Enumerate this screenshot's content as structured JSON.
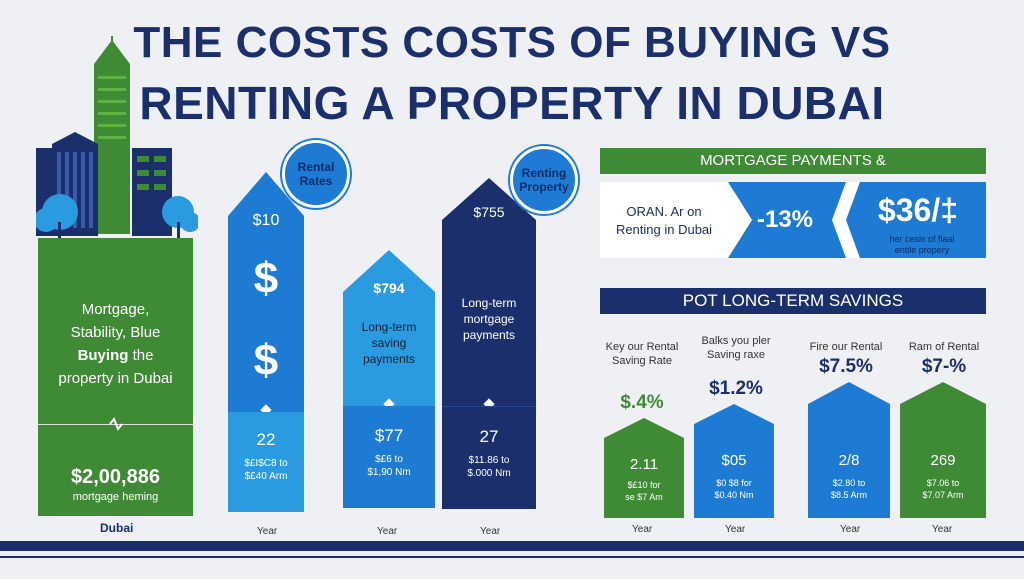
{
  "title": {
    "line1": "THE COSTS COSTS OF BUYING VS",
    "line2": "RENTING A PROPERTY IN DUBAI"
  },
  "left_column": {
    "text_line1": "Mortgage,",
    "text_line2": "Stability, Blue",
    "text_bold": "Buying",
    "text_line3_rest": " the",
    "text_line4": "property in Dubai",
    "big_value": "$2,00,886",
    "sub_value": "mortgage heming",
    "label": "Dubai"
  },
  "badges": [
    {
      "line1": "Rental",
      "line2": "Rates"
    },
    {
      "line1": "Renting",
      "line2": "Property"
    }
  ],
  "columns": [
    {
      "top_value": "$10",
      "mid_symbol1": "$",
      "mid_symbol2": "$",
      "big": "22",
      "sub1": "$£I$C8 to",
      "sub2": "$£40 Arm",
      "year": "Year"
    },
    {
      "top_value": "$794",
      "text1": "Long-term",
      "text2": "saving",
      "text3": "payments",
      "big": "$77",
      "sub1": "$£6 to",
      "sub2": "$1,90 Nm",
      "year": "Year"
    },
    {
      "top_value": "$755",
      "text1": "Long-term",
      "text2": "mortgage",
      "text3": "payments",
      "big": "27",
      "sub1": "$11.86 to",
      "sub2": "$.000 Nm",
      "year": "Year"
    }
  ],
  "mortgage_panel": {
    "banner": "MORTGAGE PAYMENTS &",
    "box_line1": "ORAN. Ar on",
    "box_line2": "Renting in Dubai",
    "pct": "-13%",
    "amount": "$36/‡",
    "note1": "her cesis of fiaal",
    "note2": "entile propery"
  },
  "savings_panel": {
    "banner": "POT LONG-TERM SAVINGS",
    "columns": [
      {
        "label1": "Key our Rental",
        "label2": "Saving Rate",
        "pct": "$.4%",
        "big": "2.11",
        "sub1": "$£10 for",
        "sub2": "se $7 Am",
        "year": "Year"
      },
      {
        "label1": "Balks you pler",
        "label2": "Saving raxe",
        "pct": "$1.2%",
        "big": "$05",
        "sub1": "$0 $8 for",
        "sub2": "$0.40 Nm",
        "year": "Year"
      },
      {
        "label1": "Fire our Rental",
        "label2": "",
        "pct": "$7.5%",
        "big": "2/8",
        "sub1": "$2.80 to",
        "sub2": "$8.5 Arm",
        "year": "Year"
      },
      {
        "label1": "Ram of Rental",
        "label2": "",
        "pct": "$7-%",
        "big": "269",
        "sub1": "$7.06 to",
        "sub2": "$7.07 Arm",
        "year": "Year"
      }
    ]
  },
  "colors": {
    "navy": "#1a2f6b",
    "blue": "#1e7bd3",
    "light_blue": "#2a9be0",
    "green": "#3f8a34",
    "background": "#eef0f3"
  }
}
